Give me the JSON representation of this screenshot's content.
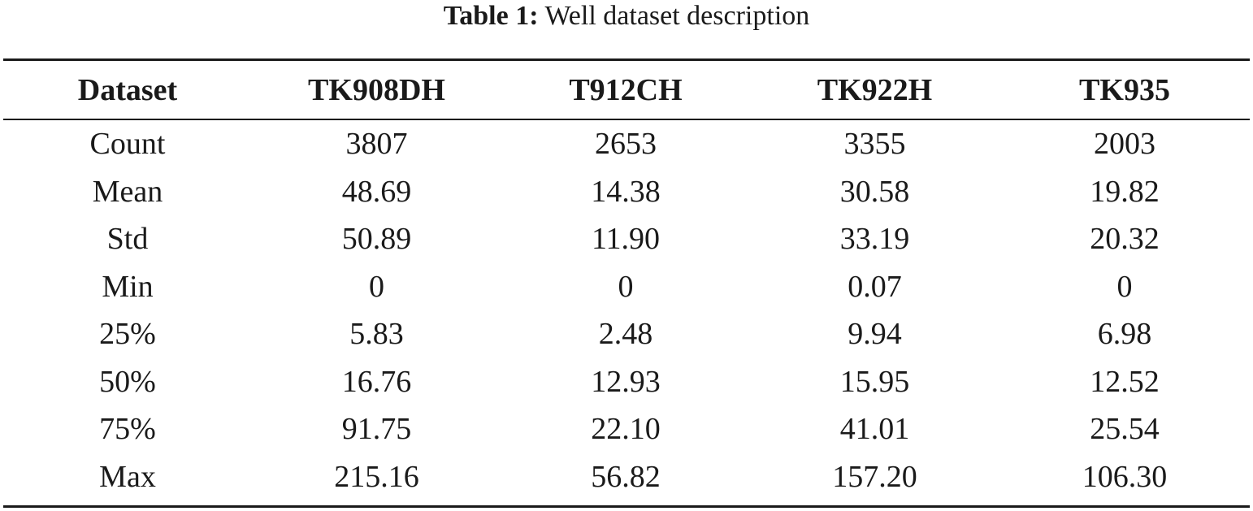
{
  "caption": {
    "label": "Table 1:",
    "text": "Well dataset description"
  },
  "table": {
    "columns": [
      "Dataset",
      "TK908DH",
      "T912CH",
      "TK922H",
      "TK935"
    ],
    "rows": [
      [
        "Count",
        "3807",
        "2653",
        "3355",
        "2003"
      ],
      [
        "Mean",
        "48.69",
        "14.38",
        "30.58",
        "19.82"
      ],
      [
        "Std",
        "50.89",
        "11.90",
        "33.19",
        "20.32"
      ],
      [
        "Min",
        "0",
        "0",
        "0.07",
        "0"
      ],
      [
        "25%",
        "5.83",
        "2.48",
        "9.94",
        "6.98"
      ],
      [
        "50%",
        "16.76",
        "12.93",
        "15.95",
        "12.52"
      ],
      [
        "75%",
        "91.75",
        "22.10",
        "41.01",
        "25.54"
      ],
      [
        "Max",
        "215.16",
        "56.82",
        "157.20",
        "106.30"
      ]
    ]
  }
}
